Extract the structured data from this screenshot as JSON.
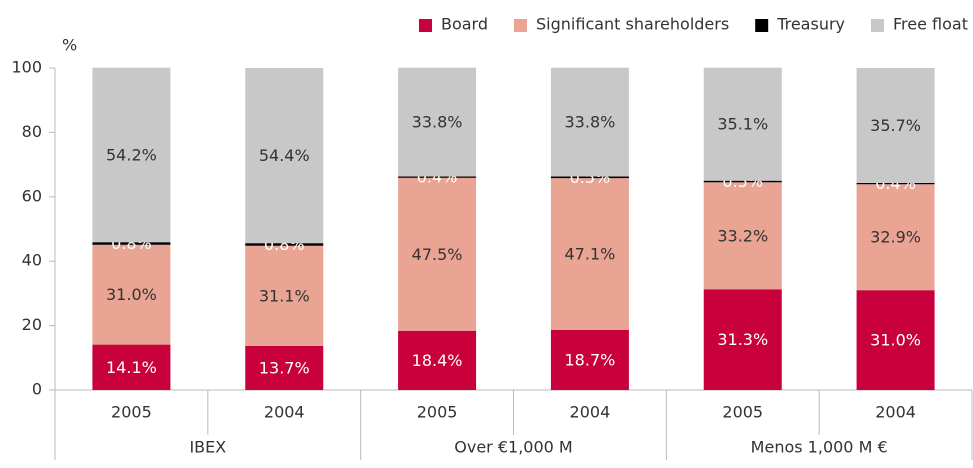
{
  "chart_data": {
    "type": "stacked_bar",
    "ylabel": "%",
    "categories": [
      "2005",
      "2004",
      "2005",
      "2004",
      "2005",
      "2004"
    ],
    "groups": [
      "IBEX",
      "Over €1,000 M",
      "Menos 1,000 M €"
    ],
    "ylim": [
      0,
      100
    ],
    "yticks": [
      0,
      20,
      40,
      60,
      80,
      100
    ],
    "legend": "top-right",
    "series": [
      {
        "name": "Board",
        "color": "#c8003c",
        "label_color": "#ffffff",
        "values": [
          14.1,
          13.7,
          18.4,
          18.7,
          31.3,
          31.0
        ],
        "value_labels": [
          "14.1%",
          "13.7%",
          "18.4%",
          "18.7%",
          "31.3%",
          "31.0%"
        ]
      },
      {
        "name": "Significant shareholders",
        "color": "#e9a493",
        "label_color": "#333333",
        "values": [
          31.0,
          31.1,
          47.5,
          47.1,
          33.2,
          32.9
        ],
        "value_labels": [
          "31.0%",
          "31.1%",
          "47.5%",
          "47.1%",
          "33.2%",
          "32.9%"
        ]
      },
      {
        "name": "Treasury",
        "color": "#000000",
        "label_color": "#ffffff",
        "values": [
          0.8,
          0.8,
          0.4,
          0.5,
          0.5,
          0.4
        ],
        "value_labels": [
          "0.8%",
          "0.8%",
          "0.4%",
          "0.5%",
          "0.5%",
          "0.4%"
        ]
      },
      {
        "name": "Free float",
        "color": "#c8c8c8",
        "label_color": "#333333",
        "values": [
          54.2,
          54.4,
          33.8,
          33.8,
          35.1,
          35.7
        ],
        "value_labels": [
          "54.2%",
          "54.4%",
          "33.8%",
          "33.8%",
          "35.1%",
          "35.7%"
        ]
      }
    ]
  }
}
